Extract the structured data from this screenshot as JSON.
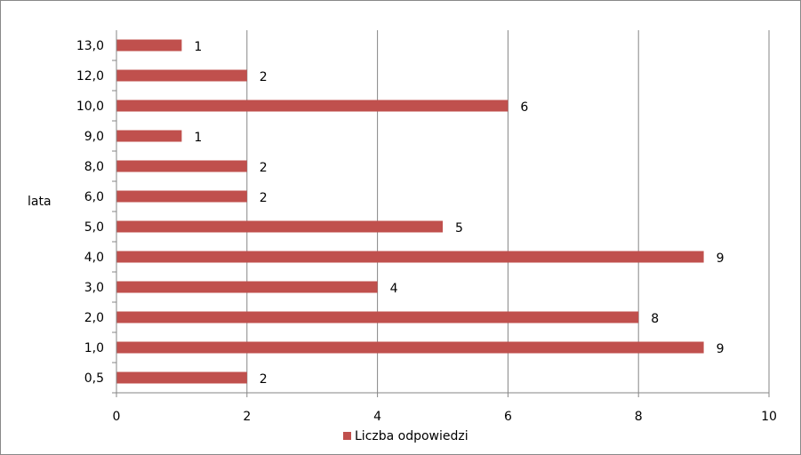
{
  "chart_data": {
    "type": "bar",
    "orientation": "horizontal",
    "categories": [
      "0,5",
      "1,0",
      "2,0",
      "3,0",
      "4,0",
      "5,0",
      "6,0",
      "8,0",
      "9,0",
      "10,0",
      "12,0",
      "13,0"
    ],
    "series": [
      {
        "name": "Liczba odpowiedzi",
        "color": "#C0504D",
        "values": [
          2,
          9,
          8,
          4,
          9,
          5,
          2,
          2,
          1,
          6,
          2,
          1
        ]
      }
    ],
    "ylabel": "lata",
    "xlim": [
      0,
      10
    ],
    "xticks": [
      0,
      2,
      4,
      6,
      8,
      10
    ],
    "grid": "vertical",
    "legend": "bottom",
    "data_labels": true
  }
}
